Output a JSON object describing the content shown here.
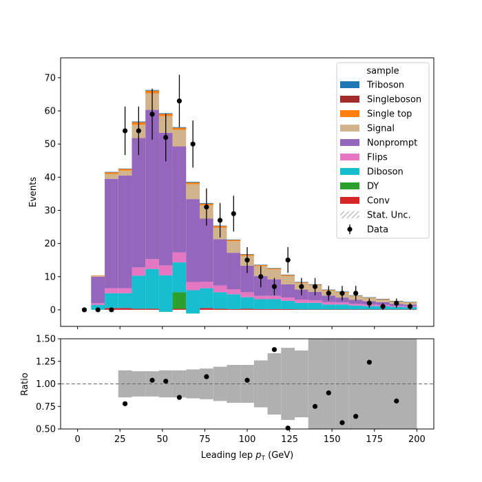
{
  "chart_data": [
    {
      "type": "bar",
      "stacked": true,
      "xlabel_prefix": "Leading lep ",
      "xlabel_sym": "p",
      "xlabel_sub": "T",
      "xlabel_suffix": " (GeV)",
      "ylabel": "Events",
      "xlim": [
        -10,
        210
      ],
      "ylim": [
        -5,
        76
      ],
      "xticks": [
        0,
        25,
        50,
        75,
        100,
        125,
        150,
        175,
        200
      ],
      "yticks": [
        0,
        10,
        20,
        30,
        40,
        50,
        60,
        70
      ],
      "bin_edges": [
        0,
        8,
        16,
        24,
        32,
        40,
        48,
        56,
        64,
        72,
        80,
        88,
        96,
        104,
        112,
        120,
        128,
        136,
        144,
        152,
        160,
        168,
        176,
        184,
        192,
        200
      ],
      "legend": {
        "title": "sample",
        "placement": "upper right",
        "entries": [
          "Triboson",
          "Singleboson",
          "Single top",
          "Signal",
          "Nonprompt",
          "Flips",
          "Diboson",
          "DY",
          "Conv",
          "Stat. Unc.",
          "Data"
        ]
      },
      "series": [
        {
          "name": "Conv",
          "color": "#d62728",
          "values": [
            0,
            0,
            0.5,
            0.5,
            0.3,
            0.3,
            0.4,
            0.3,
            0.4,
            0.5,
            0.3,
            0.2,
            0.3,
            0.2,
            0.2,
            0.2,
            0.1,
            0.1,
            0.1,
            0.1,
            0.1,
            0.1,
            0.1,
            0.1,
            0.1
          ]
        },
        {
          "name": "DY",
          "color": "#2ca02c",
          "values": [
            0,
            0,
            0,
            0,
            0,
            0,
            -1,
            5,
            -1.5,
            0,
            0,
            0,
            0,
            0,
            0,
            0,
            0,
            0,
            0,
            0,
            0,
            0,
            0,
            0,
            0
          ]
        },
        {
          "name": "Diboson",
          "color": "#17becf",
          "values": [
            0,
            1.5,
            4.5,
            4.5,
            10,
            12,
            11,
            9,
            7,
            6,
            5,
            4.5,
            3.5,
            3,
            3,
            2.5,
            2,
            2,
            1.5,
            1.5,
            1.2,
            1,
            1,
            0.8,
            0.7
          ]
        },
        {
          "name": "Flips",
          "color": "#e377c2",
          "values": [
            0,
            0.5,
            1.5,
            1.5,
            2.5,
            3,
            3,
            3,
            2.5,
            2,
            2,
            1.5,
            1.5,
            1,
            1,
            1,
            1,
            0.8,
            0.7,
            0.6,
            0.5,
            0.5,
            0.4,
            0.3,
            0.3
          ]
        },
        {
          "name": "Nonprompt",
          "color": "#9467bd",
          "values": [
            0,
            8,
            33,
            34,
            39,
            45,
            40,
            32,
            25,
            19,
            14,
            11,
            8,
            6,
            5,
            4,
            3,
            2.5,
            2,
            1.5,
            1.2,
            1,
            0.8,
            0.6,
            0.5
          ]
        },
        {
          "name": "Signal",
          "color": "#d2b48c",
          "values": [
            0,
            0.3,
            1.5,
            1.5,
            4,
            5,
            5,
            5,
            4.5,
            4,
            3.5,
            3.5,
            3,
            3,
            3,
            2.5,
            2,
            2,
            1.5,
            1.5,
            1.2,
            1,
            0.8,
            0.7,
            0.6
          ]
        },
        {
          "name": "Single top",
          "color": "#ff7f0e",
          "values": [
            0,
            0.1,
            0.5,
            0.5,
            0.8,
            0.8,
            0.7,
            0.6,
            0.5,
            0.5,
            0.5,
            0.4,
            0.4,
            0.3,
            0.3,
            0.3,
            0.2,
            0.2,
            0.2,
            0.2,
            0.1,
            0.1,
            0.1,
            0.1,
            0.1
          ]
        },
        {
          "name": "Singleboson",
          "color": "#a52a2a",
          "values": [
            0,
            0,
            0,
            0,
            0,
            0,
            0,
            0,
            0,
            0,
            0,
            0,
            0,
            0,
            0,
            0,
            0,
            0,
            0,
            0,
            0,
            0,
            0,
            0,
            0
          ]
        },
        {
          "name": "Triboson",
          "color": "#1f77b4",
          "values": [
            0,
            0,
            0.1,
            0.1,
            0.2,
            0.2,
            0.2,
            0.2,
            0.2,
            0.2,
            0.1,
            0.1,
            0.1,
            0.1,
            0.1,
            0.1,
            0.1,
            0.1,
            0.1,
            0.1,
            0.1,
            0.1,
            0.1,
            0.1,
            0.1
          ]
        }
      ],
      "data": {
        "name": "Data",
        "x": [
          4,
          12,
          20,
          28,
          36,
          44,
          52,
          60,
          68,
          76,
          84,
          92,
          100,
          108,
          116,
          124,
          132,
          140,
          148,
          156,
          164,
          172,
          180,
          188,
          196
        ],
        "y": [
          0,
          0,
          0,
          54,
          54,
          59,
          52,
          63,
          50,
          31,
          27,
          29,
          15,
          10,
          7,
          15,
          7,
          7,
          5,
          5,
          5,
          2,
          1,
          2,
          1
        ],
        "yerr": [
          0,
          0,
          0,
          7.3,
          7.3,
          7.7,
          7.2,
          7.9,
          7.1,
          5.6,
          5.2,
          5.4,
          3.9,
          3.2,
          2.6,
          3.9,
          2.6,
          2.6,
          2.2,
          2.2,
          2.2,
          1.4,
          1,
          1.4,
          1
        ]
      }
    },
    {
      "type": "scatter",
      "xlabel_prefix": "Leading lep ",
      "xlabel_sym": "p",
      "xlabel_sub": "T",
      "xlabel_suffix": " (GeV)",
      "ylabel": "Ratio",
      "xlim": [
        -10,
        210
      ],
      "ylim": [
        0.5,
        1.5
      ],
      "xticks": [
        0,
        25,
        50,
        75,
        100,
        125,
        150,
        175,
        200
      ],
      "yticks": [
        0.5,
        0.75,
        1.0,
        1.25,
        1.5
      ],
      "ytick_labels": [
        "0.50",
        "0.75",
        "1.00",
        "1.25",
        "1.50"
      ],
      "reference_line": 1.0,
      "unc_band": {
        "x_edges": [
          24,
          32,
          40,
          48,
          56,
          64,
          72,
          80,
          88,
          96,
          104,
          112,
          120,
          128,
          136,
          144,
          152,
          160,
          168,
          200
        ],
        "half_widths": [
          0.15,
          0.14,
          0.14,
          0.15,
          0.15,
          0.16,
          0.17,
          0.19,
          0.21,
          0.21,
          0.26,
          0.34,
          0.4,
          0.37,
          0.5,
          0.5,
          0.6,
          0.5,
          0.5
        ]
      },
      "points": {
        "x": [
          28,
          44,
          52,
          60,
          76,
          100,
          116,
          124,
          140,
          148,
          156,
          164,
          172,
          188
        ],
        "y": [
          0.78,
          1.04,
          1.03,
          0.85,
          1.08,
          1.04,
          1.38,
          0.51,
          0.75,
          0.9,
          0.57,
          0.64,
          1.24,
          0.81
        ]
      }
    }
  ]
}
